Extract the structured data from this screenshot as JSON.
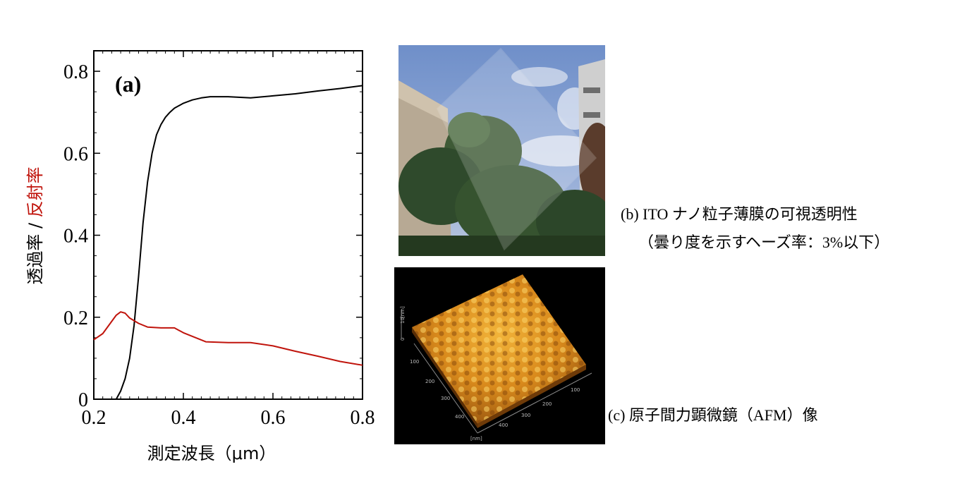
{
  "figure": {
    "panel_a_label": "(a)",
    "caption_b_line1": "(b) ITO ナノ粒子薄膜の可視透明性",
    "caption_b_line2": "（曇り度を示すヘーズ率：3%以下）",
    "caption_c": "(c)  原子間力顕微鏡（AFM）像",
    "afm_axis_z": "10",
    "afm_axis_z_zero": "0",
    "afm_axis_unit_z": "[nm]",
    "afm_axis_unit_xy": "[nm]",
    "afm_ticks_left": [
      "100",
      "200",
      "300",
      "400"
    ],
    "afm_ticks_right": [
      "100",
      "200",
      "300",
      "400"
    ]
  },
  "chart_data": {
    "type": "line",
    "title": "",
    "xlabel": "測定波長（μm）",
    "ylabel_part1": "透過率",
    "ylabel_sep": " / ",
    "ylabel_part2": "反射率",
    "xlim": [
      0.2,
      0.8
    ],
    "ylim": [
      0,
      0.85
    ],
    "xticks": [
      0.2,
      0.4,
      0.6,
      0.8
    ],
    "xtick_labels": [
      "0.2",
      "0.4",
      "0.6",
      "0.8"
    ],
    "yticks": [
      0,
      0.2,
      0.4,
      0.6,
      0.8
    ],
    "ytick_labels": [
      "0",
      "0.2",
      "0.4",
      "0.6",
      "0.8"
    ],
    "grid": false,
    "colors": {
      "transmittance": "#000000",
      "reflectance": "#c0140c"
    },
    "series": [
      {
        "id": "transmittance",
        "x": [
          0.25,
          0.26,
          0.27,
          0.28,
          0.29,
          0.3,
          0.31,
          0.32,
          0.33,
          0.34,
          0.35,
          0.36,
          0.37,
          0.38,
          0.4,
          0.42,
          0.44,
          0.46,
          0.5,
          0.55,
          0.6,
          0.65,
          0.7,
          0.75,
          0.8
        ],
        "y": [
          0.0,
          0.02,
          0.05,
          0.1,
          0.18,
          0.3,
          0.43,
          0.53,
          0.6,
          0.645,
          0.67,
          0.688,
          0.7,
          0.71,
          0.722,
          0.73,
          0.735,
          0.738,
          0.738,
          0.735,
          0.74,
          0.745,
          0.752,
          0.758,
          0.765
        ]
      },
      {
        "id": "reflectance",
        "x": [
          0.2,
          0.22,
          0.24,
          0.25,
          0.26,
          0.27,
          0.28,
          0.3,
          0.32,
          0.35,
          0.38,
          0.4,
          0.45,
          0.5,
          0.55,
          0.6,
          0.65,
          0.7,
          0.75,
          0.8
        ],
        "y": [
          0.145,
          0.16,
          0.19,
          0.205,
          0.213,
          0.21,
          0.198,
          0.185,
          0.176,
          0.174,
          0.174,
          0.162,
          0.14,
          0.138,
          0.138,
          0.13,
          0.117,
          0.105,
          0.092,
          0.083
        ]
      }
    ]
  }
}
